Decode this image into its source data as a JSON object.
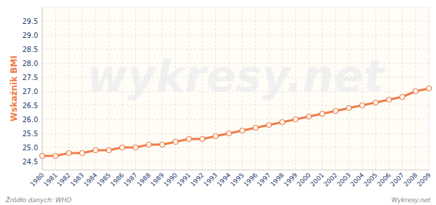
{
  "chart_data": {
    "type": "line",
    "y_label": "Wskaźnik BMI",
    "source": "Źródło danych: WHO",
    "credit": "Wykresy.net",
    "watermark": "wykresy.net",
    "categories": [
      "1980",
      "1981",
      "1982",
      "1983",
      "1984",
      "1985",
      "1986",
      "1987",
      "1988",
      "1989",
      "1990",
      "1991",
      "1992",
      "1993",
      "1994",
      "1995",
      "1996",
      "1997",
      "1998",
      "1999",
      "2000",
      "2001",
      "2002",
      "2003",
      "2004",
      "2005",
      "2006",
      "2007",
      "2008",
      "2009"
    ],
    "values": [
      24.7,
      24.7,
      24.8,
      24.8,
      24.9,
      24.9,
      25.0,
      25.0,
      25.1,
      25.1,
      25.2,
      25.3,
      25.3,
      25.4,
      25.5,
      25.6,
      25.7,
      25.8,
      25.9,
      26.0,
      26.1,
      26.2,
      26.3,
      26.4,
      26.5,
      26.6,
      26.7,
      26.8,
      27.0,
      27.1
    ],
    "color": "#f07b45",
    "marker": "circle",
    "ylim": [
      24.2,
      30.0
    ],
    "yticks": [
      24.5,
      {
        "value": 25,
        "label": "25.0"
      },
      25.5,
      {
        "value": 26,
        "label": "26.0"
      },
      26.5,
      {
        "value": 27,
        "label": "27.0"
      },
      27.5,
      {
        "value": 28,
        "label": "28.0"
      },
      28.5,
      {
        "value": 29,
        "label": "29.0"
      },
      29.5
    ],
    "grid": true
  }
}
